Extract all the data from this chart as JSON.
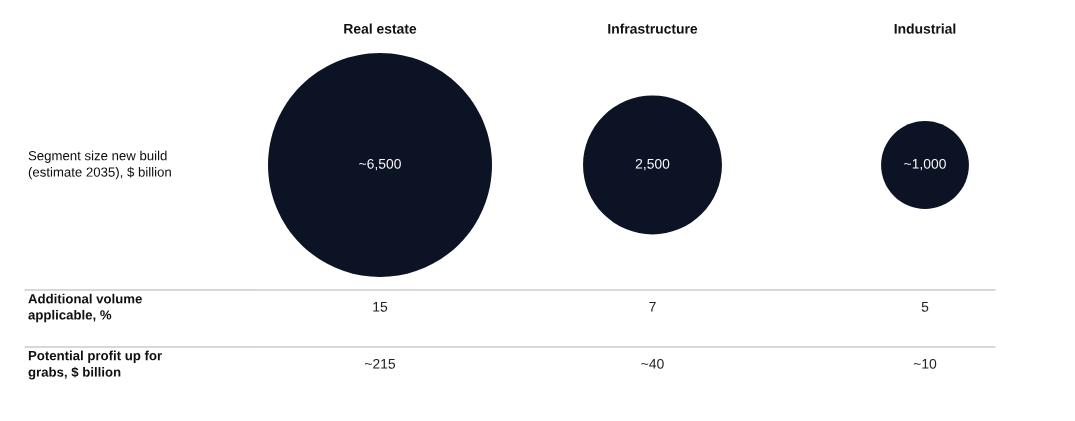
{
  "chart_data": {
    "type": "other",
    "categories": [
      "Real estate",
      "Infrastructure",
      "Industrial"
    ],
    "series": [
      {
        "name": "Segment size new build\n(estimate 2035), $ billion",
        "type": "bubble",
        "color": "#0b1324",
        "values": [
          6500,
          2500,
          1000
        ],
        "value_labels": [
          "~6,500",
          "2,500",
          "~1,000"
        ]
      },
      {
        "name": "Additional volume\napplicable, %",
        "values": [
          15,
          7,
          5
        ],
        "value_labels": [
          "15",
          "7",
          "5"
        ]
      },
      {
        "name": "Potential profit up for\ngrabs, $ billion",
        "values": [
          215,
          40,
          10
        ],
        "value_labels": [
          "~215",
          "~40",
          "~10"
        ]
      }
    ]
  }
}
